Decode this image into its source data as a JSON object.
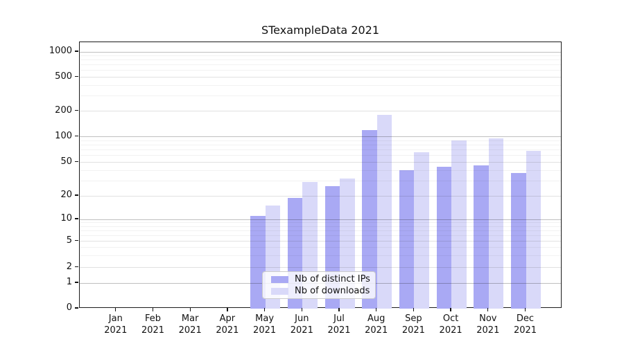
{
  "chart_data": {
    "type": "bar",
    "title": "STexampleData 2021",
    "categories": [
      "Jan 2021",
      "Feb 2021",
      "Mar 2021",
      "Apr 2021",
      "May 2021",
      "Jun 2021",
      "Jul 2021",
      "Aug 2021",
      "Sep 2021",
      "Oct 2021",
      "Nov 2021",
      "Dec 2021"
    ],
    "series": [
      {
        "name": "Nb of distinct IPs",
        "color": "#a9a9f4",
        "values": [
          0,
          0,
          0,
          0,
          11,
          19,
          26,
          120,
          40,
          44,
          46,
          37
        ]
      },
      {
        "name": "Nb of downloads",
        "color": "#d9d9f9",
        "values": [
          0,
          0,
          0,
          0,
          15,
          29,
          32,
          180,
          66,
          90,
          96,
          68
        ]
      }
    ],
    "y_axis": {
      "scale": "log-like (0 baseline, log above 1)",
      "ticks": [
        0,
        1,
        2,
        5,
        10,
        20,
        50,
        100,
        200,
        500,
        1000
      ],
      "ylim": [
        0,
        1400
      ],
      "major_grid_values": [
        1,
        10,
        100,
        1000
      ]
    },
    "x_axis": {
      "tick_year_line": "2021"
    },
    "legend": {
      "position": "bottom-center-inside",
      "entries": [
        "Nb of distinct IPs",
        "Nb of downloads"
      ]
    },
    "grid": true,
    "colors": {
      "bar_ips": "#a9a9f4",
      "bar_downloads": "#d9d9f9",
      "spine": "#1a1a1a",
      "background": "#ffffff"
    }
  }
}
